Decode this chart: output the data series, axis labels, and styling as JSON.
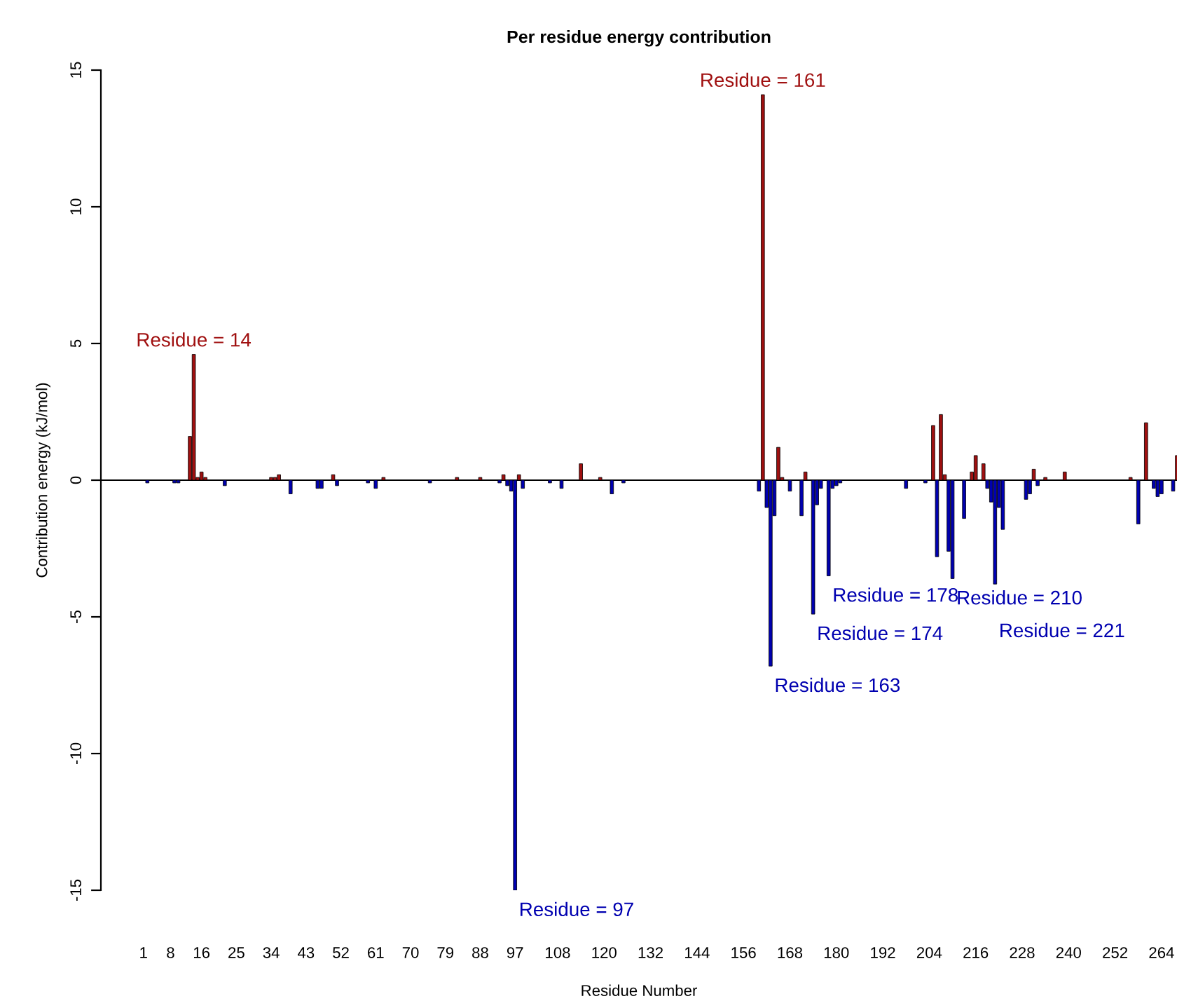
{
  "chart_data": {
    "type": "bar",
    "title": "Per residue energy contribution",
    "xlabel": "Residue Number",
    "ylabel": "Contribution energy (kJ/mol)",
    "series": [
      {
        "color": "#a01010",
        "x": [
          13,
          14,
          15,
          16,
          17,
          34,
          35,
          36,
          50,
          63,
          82,
          88,
          94,
          98,
          114,
          119,
          161,
          165,
          166,
          172,
          205,
          207,
          208,
          215,
          216,
          218,
          231,
          234,
          239,
          256,
          260,
          268
        ],
        "values": [
          1.6,
          4.6,
          0.1,
          0.3,
          0.1,
          0.1,
          0.1,
          0.2,
          0.2,
          0.1,
          0.1,
          0.1,
          0.2,
          0.2,
          0.6,
          0.1,
          14.1,
          1.2,
          0.1,
          0.3,
          2.0,
          2.4,
          0.2,
          0.3,
          0.9,
          0.6,
          0.4,
          0.1,
          0.3,
          0.1,
          2.1,
          0.9
        ]
      },
      {
        "color": "#0000b0",
        "x": [
          2,
          9,
          10,
          22,
          39,
          46,
          47,
          51,
          59,
          61,
          75,
          93,
          95,
          96,
          97,
          99,
          106,
          109,
          122,
          125,
          160,
          162,
          163,
          164,
          168,
          171,
          174,
          175,
          176,
          178,
          179,
          180,
          181,
          198,
          203,
          206,
          209,
          210,
          213,
          219,
          220,
          221,
          222,
          223,
          229,
          230,
          232,
          258,
          262,
          263,
          264,
          267
        ],
        "values": [
          -0.1,
          -0.1,
          -0.1,
          -0.2,
          -0.5,
          -0.3,
          -0.3,
          -0.2,
          -0.1,
          -0.3,
          -0.1,
          -0.1,
          -0.2,
          -0.4,
          -15,
          -0.3,
          -0.1,
          -0.3,
          -0.5,
          -0.1,
          -0.4,
          -1.0,
          -6.8,
          -1.3,
          -0.4,
          -1.3,
          -4.9,
          -0.9,
          -0.3,
          -3.5,
          -0.3,
          -0.2,
          -0.1,
          -0.3,
          -0.1,
          -2.8,
          -2.6,
          -3.6,
          -1.4,
          -0.3,
          -0.8,
          -3.8,
          -1.0,
          -1.8,
          -0.7,
          -0.5,
          -0.2,
          -1.6,
          -0.3,
          -0.6,
          -0.5,
          -0.4
        ]
      }
    ],
    "xlim": [
      -10,
      268
    ],
    "xticks": [
      1,
      8,
      16,
      25,
      34,
      43,
      52,
      61,
      70,
      79,
      88,
      97,
      108,
      120,
      132,
      144,
      156,
      168,
      180,
      192,
      204,
      216,
      228,
      240,
      252,
      264
    ],
    "ylim": [
      -15,
      15
    ],
    "yticks": [
      -15,
      -10,
      -5,
      0,
      5,
      10,
      15
    ],
    "ref_lines": [
      {
        "axis": "y",
        "value": 0,
        "color": "#000000"
      }
    ],
    "annotations": [
      {
        "text": "Residue = 14",
        "x": 14,
        "y": 4.6
      },
      {
        "text": "Residue = 161",
        "x": 161,
        "y": 14.1
      },
      {
        "text": "Residue = 97",
        "x": 97,
        "y": -15
      },
      {
        "text": "Residue = 163",
        "x": 163,
        "y": -6.8
      },
      {
        "text": "Residue = 174",
        "x": 174,
        "y": -4.9
      },
      {
        "text": "Residue = 178",
        "x": 178,
        "y": -3.5
      },
      {
        "text": "Residue = 210",
        "x": 210,
        "y": -3.6
      },
      {
        "text": "Residue = 221",
        "x": 221,
        "y": -3.8
      }
    ],
    "grid": false,
    "legend": false
  }
}
